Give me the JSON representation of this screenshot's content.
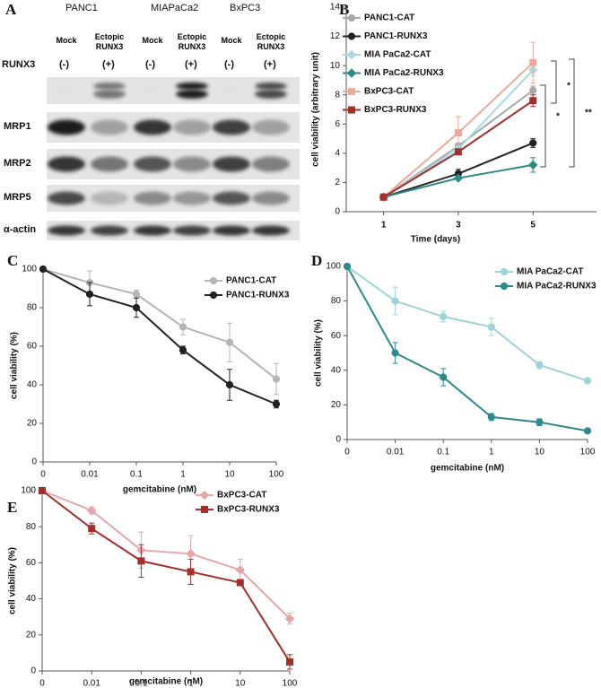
{
  "panel_a": {
    "label": "A",
    "cell_lines": [
      "PANC1",
      "MIAPaCa2",
      "BxPC3"
    ],
    "lanes": [
      "Mock",
      "Ectopic RUNX3",
      "Mock",
      "Ectopic RUNX3",
      "Mock",
      "Ectopic RUNX3"
    ],
    "status_label": "RUNX3",
    "status": [
      "(-)",
      "(+)",
      "(-)",
      "(+)",
      "(-)",
      "(+)"
    ],
    "proteins": [
      "MRP1",
      "MRP2",
      "MRP5",
      "α-actin"
    ]
  },
  "chart_data": [
    {
      "type": "line",
      "label": "B",
      "y_label": "cell viability (arbitrary unit)",
      "x_label": "Time (days)",
      "x": [
        1,
        3,
        5
      ],
      "xlim": [
        0,
        6.7
      ],
      "xticks": [
        1,
        3,
        5
      ],
      "ylim": [
        0,
        14
      ],
      "yticks": [
        0,
        2,
        4,
        6,
        8,
        10,
        12,
        14
      ],
      "series": [
        {
          "name": "PANC1-CAT",
          "color": "#a8a8a8",
          "marker": "circle",
          "values": [
            1,
            4.5,
            8.3
          ],
          "errors": [
            0,
            0.2,
            0.3
          ]
        },
        {
          "name": "PANC1-RUNX3",
          "color": "#222222",
          "marker": "circle",
          "values": [
            1,
            2.6,
            4.7
          ],
          "errors": [
            0,
            0.3,
            0.3
          ]
        },
        {
          "name": "MIA PaCa2-CAT",
          "color": "#a9d9df",
          "marker": "diamond",
          "values": [
            1,
            4.3,
            9.7
          ],
          "errors": [
            0,
            0.2,
            0.4
          ]
        },
        {
          "name": "MIA PaCa2-RUNX3",
          "color": "#2e8a8a",
          "marker": "diamond",
          "values": [
            1,
            2.3,
            3.2
          ],
          "errors": [
            0,
            0.1,
            0.5
          ]
        },
        {
          "name": "BxPC3-CAT",
          "color": "#eeaa98",
          "marker": "square",
          "values": [
            1,
            5.4,
            10.2
          ],
          "errors": [
            0,
            1.1,
            1.4
          ]
        },
        {
          "name": "BxPC3-RUNX3",
          "color": "#a3302b",
          "marker": "square",
          "values": [
            1,
            4.1,
            7.6
          ],
          "errors": [
            0,
            0.2,
            0.4
          ]
        }
      ],
      "annotations": [
        "*",
        "*",
        "**"
      ]
    },
    {
      "type": "line",
      "label": "C",
      "y_label": "cell viability (%)",
      "x_label": "gemcitabine (nM)",
      "categories": [
        "0",
        "0.01",
        "0.1",
        "1",
        "10",
        "100"
      ],
      "ylim": [
        0,
        100
      ],
      "yticks": [
        0,
        20,
        40,
        60,
        80,
        100
      ],
      "series": [
        {
          "name": "PANC1-CAT",
          "color": "#b5b5b5",
          "marker": "circle",
          "values": [
            100,
            93,
            87,
            70,
            62,
            43
          ],
          "errors": [
            0,
            6,
            2,
            4,
            10,
            8
          ]
        },
        {
          "name": "PANC1-RUNX3",
          "color": "#222222",
          "marker": "circle",
          "values": [
            100,
            87,
            80,
            58,
            40,
            30
          ],
          "errors": [
            0,
            6,
            5,
            2,
            8,
            2
          ]
        }
      ]
    },
    {
      "type": "line",
      "label": "D",
      "y_label": "cell viability (%)",
      "x_label": "gemcitabine (nM)",
      "categories": [
        "0",
        "0.01",
        "0.1",
        "1",
        "10",
        "100"
      ],
      "ylim": [
        0,
        100
      ],
      "yticks": [
        0,
        20,
        40,
        60,
        80,
        100
      ],
      "series": [
        {
          "name": "MIA PaCa2-CAT",
          "color": "#9fd3da",
          "marker": "circle",
          "values": [
            100,
            80,
            71,
            65,
            43,
            34
          ],
          "errors": [
            0,
            8,
            3,
            5,
            2,
            1
          ]
        },
        {
          "name": "MIA PaCa2-RUNX3",
          "color": "#2e8a8a",
          "marker": "circle",
          "values": [
            100,
            50,
            36,
            13,
            10,
            5
          ],
          "errors": [
            0,
            6,
            5,
            2,
            2,
            1
          ]
        }
      ]
    },
    {
      "type": "line",
      "label": "E",
      "y_label": "cell viability (%)",
      "x_label": "gemcitabine (nM)",
      "categories": [
        "0",
        "0.01",
        "0.1",
        "1",
        "10",
        "100"
      ],
      "ylim": [
        0,
        100
      ],
      "yticks": [
        0,
        20,
        40,
        60,
        80,
        100
      ],
      "series": [
        {
          "name": "BxPC3-CAT",
          "color": "#e6a6a6",
          "marker": "diamond",
          "values": [
            100,
            89,
            67,
            65,
            56,
            29
          ],
          "errors": [
            0,
            2,
            10,
            10,
            6,
            3
          ]
        },
        {
          "name": "BxPC3-RUNX3",
          "color": "#a3302b",
          "marker": "square",
          "values": [
            100,
            79,
            61,
            55,
            49,
            5
          ],
          "errors": [
            0,
            3,
            9,
            7,
            1,
            4
          ]
        }
      ]
    }
  ]
}
